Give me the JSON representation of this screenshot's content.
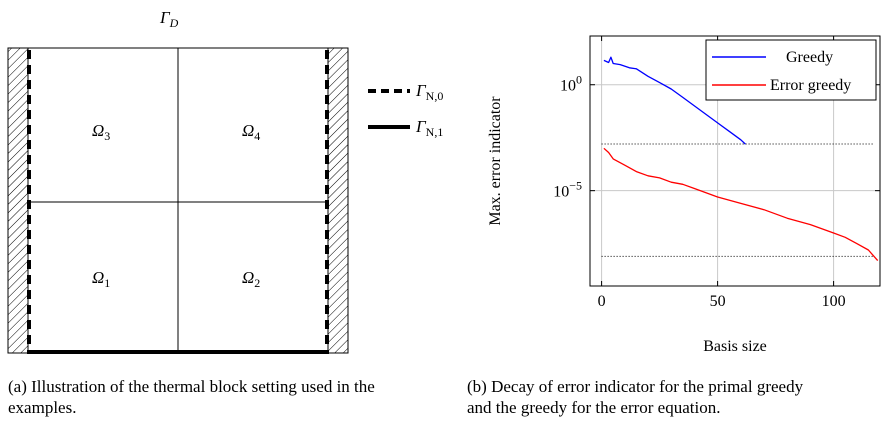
{
  "figure_a": {
    "boundary_top": "Γ",
    "boundary_top_sub": "D",
    "legend": [
      {
        "style": "dashed",
        "symbol": "Γ",
        "sub": "N,0"
      },
      {
        "style": "solid",
        "symbol": "Γ",
        "sub": "N,1"
      }
    ],
    "subdomains": [
      {
        "symbol": "Ω",
        "sub": "3"
      },
      {
        "symbol": "Ω",
        "sub": "4"
      },
      {
        "symbol": "Ω",
        "sub": "1"
      },
      {
        "symbol": "Ω",
        "sub": "2"
      }
    ],
    "caption_line1": "(a) Illustration of the thermal block setting used in the",
    "caption_line2": "examples."
  },
  "figure_b": {
    "caption_line1": "(b) Decay of error indicator for the primal greedy",
    "caption_line2": "and the greedy for the error equation."
  },
  "chart_data": {
    "type": "line",
    "title": "",
    "xlabel": "Basis size",
    "ylabel": "Max. error indicator",
    "xlim": [
      -5,
      120
    ],
    "ylim_log10": [
      -9.5,
      2.3
    ],
    "yscale": "log",
    "xticks": [
      0,
      50,
      100
    ],
    "yticks": [
      {
        "exp": 0,
        "label_base": "10",
        "label_exp": "0"
      },
      {
        "exp": -5,
        "label_base": "10",
        "label_exp": "−5"
      }
    ],
    "grid": true,
    "legend_position": "top-right",
    "series": [
      {
        "name": "Greedy",
        "color": "#0000ff",
        "x": [
          1,
          3,
          4,
          5,
          8,
          12,
          15,
          20,
          25,
          30,
          35,
          40,
          45,
          50,
          55,
          60,
          62
        ],
        "log10_y": [
          1.15,
          1.05,
          1.3,
          1.0,
          0.95,
          0.8,
          0.75,
          0.4,
          0.1,
          -0.2,
          -0.6,
          -1.0,
          -1.4,
          -1.8,
          -2.2,
          -2.6,
          -2.8
        ]
      },
      {
        "name": "Error greedy",
        "color": "#ff0000",
        "x": [
          1,
          3,
          5,
          10,
          15,
          20,
          25,
          30,
          35,
          40,
          50,
          60,
          70,
          80,
          90,
          100,
          105,
          110,
          115,
          119
        ],
        "log10_y": [
          -3.0,
          -3.2,
          -3.5,
          -3.8,
          -4.1,
          -4.3,
          -4.4,
          -4.6,
          -4.7,
          -4.9,
          -5.3,
          -5.6,
          -5.9,
          -6.3,
          -6.6,
          -7.0,
          -7.2,
          -7.5,
          -7.8,
          -8.3
        ]
      }
    ],
    "reference_lines": [
      {
        "log10_y": -2.8,
        "x": [
          0,
          117
        ],
        "style": "dotted"
      },
      {
        "log10_y": -8.1,
        "x": [
          0,
          117
        ],
        "style": "dotted"
      }
    ]
  }
}
